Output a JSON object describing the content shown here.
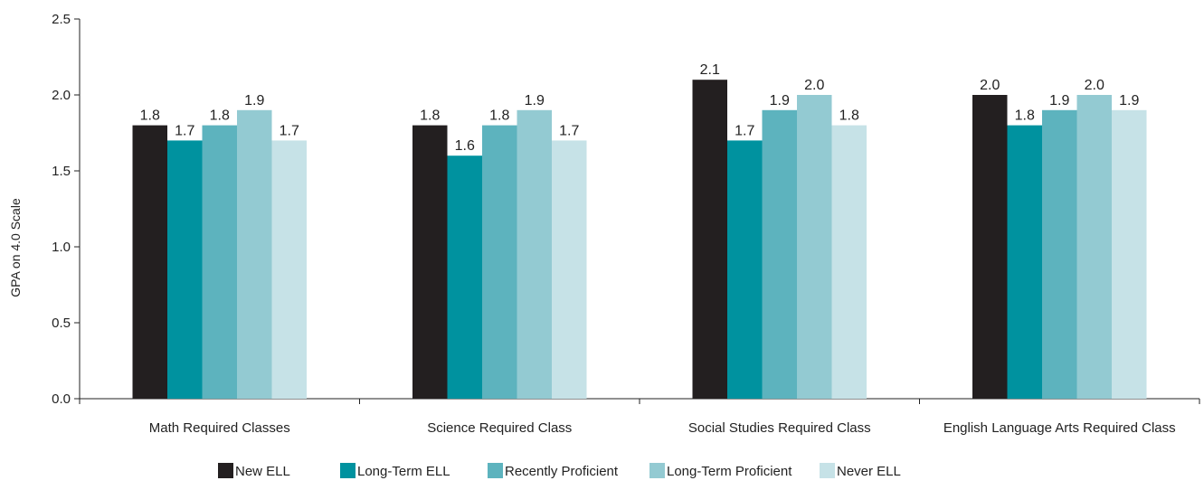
{
  "chart_data": {
    "type": "bar",
    "title": "",
    "xlabel": "",
    "ylabel": "GPA on 4.0 Scale",
    "ylim": [
      0,
      2.5
    ],
    "yticks": [
      "0.0",
      "0.5",
      "1.0",
      "1.5",
      "2.0",
      "2.5"
    ],
    "grid": false,
    "legend_position": "bottom",
    "categories": [
      "Math Required Classes",
      "Science Required Class",
      "Social Studies Required Class",
      "English Language Arts Required Class"
    ],
    "series": [
      {
        "name": "New ELL",
        "color": "#231f20",
        "values": [
          1.8,
          1.8,
          2.1,
          2.0
        ],
        "labels": [
          "1.8",
          "1.8",
          "2.1",
          "2.0"
        ]
      },
      {
        "name": "Long-Term ELL",
        "color": "#00929f",
        "values": [
          1.7,
          1.6,
          1.7,
          1.8
        ],
        "labels": [
          "1.7",
          "1.6",
          "1.7",
          "1.8"
        ]
      },
      {
        "name": "Recently Proficient",
        "color": "#5db3be",
        "values": [
          1.8,
          1.8,
          1.9,
          1.9
        ],
        "labels": [
          "1.8",
          "1.8",
          "1.9",
          "1.9"
        ]
      },
      {
        "name": "Long-Term Proficient",
        "color": "#93cad2",
        "values": [
          1.9,
          1.9,
          2.0,
          2.0
        ],
        "labels": [
          "1.9",
          "1.9",
          "2.0",
          "2.0"
        ]
      },
      {
        "name": "Never ELL",
        "color": "#c6e2e7",
        "values": [
          1.7,
          1.7,
          1.8,
          1.9
        ],
        "labels": [
          "1.7",
          "1.7",
          "1.8",
          "1.9"
        ]
      }
    ]
  }
}
